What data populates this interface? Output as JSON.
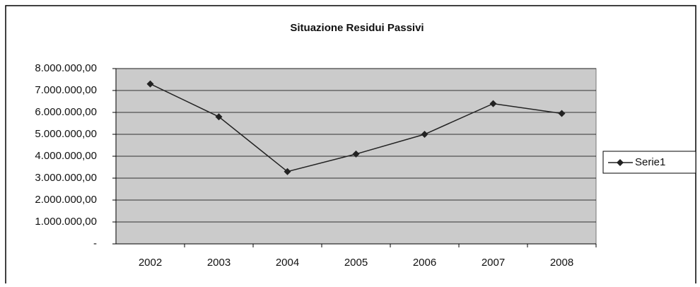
{
  "chart_data": {
    "type": "line",
    "title": "Situazione Residui Passivi",
    "categories": [
      "2002",
      "2003",
      "2004",
      "2005",
      "2006",
      "2007",
      "2008"
    ],
    "series": [
      {
        "name": "Serie1",
        "color": "#222222",
        "values": [
          7300000,
          5800000,
          3300000,
          4100000,
          5000000,
          6400000,
          5950000
        ]
      }
    ],
    "ylim": [
      0,
      8000000
    ],
    "yticks": [
      {
        "value": 0,
        "label": "-"
      },
      {
        "value": 1000000,
        "label": "1.000.000,00"
      },
      {
        "value": 2000000,
        "label": "2.000.000,00"
      },
      {
        "value": 3000000,
        "label": "3.000.000,00"
      },
      {
        "value": 4000000,
        "label": "4.000.000,00"
      },
      {
        "value": 5000000,
        "label": "5.000.000,00"
      },
      {
        "value": 6000000,
        "label": "6.000.000,00"
      },
      {
        "value": 7000000,
        "label": "7.000.000,00"
      },
      {
        "value": 8000000,
        "label": "8.000.000,00"
      }
    ],
    "grid": true,
    "legend": "right"
  }
}
